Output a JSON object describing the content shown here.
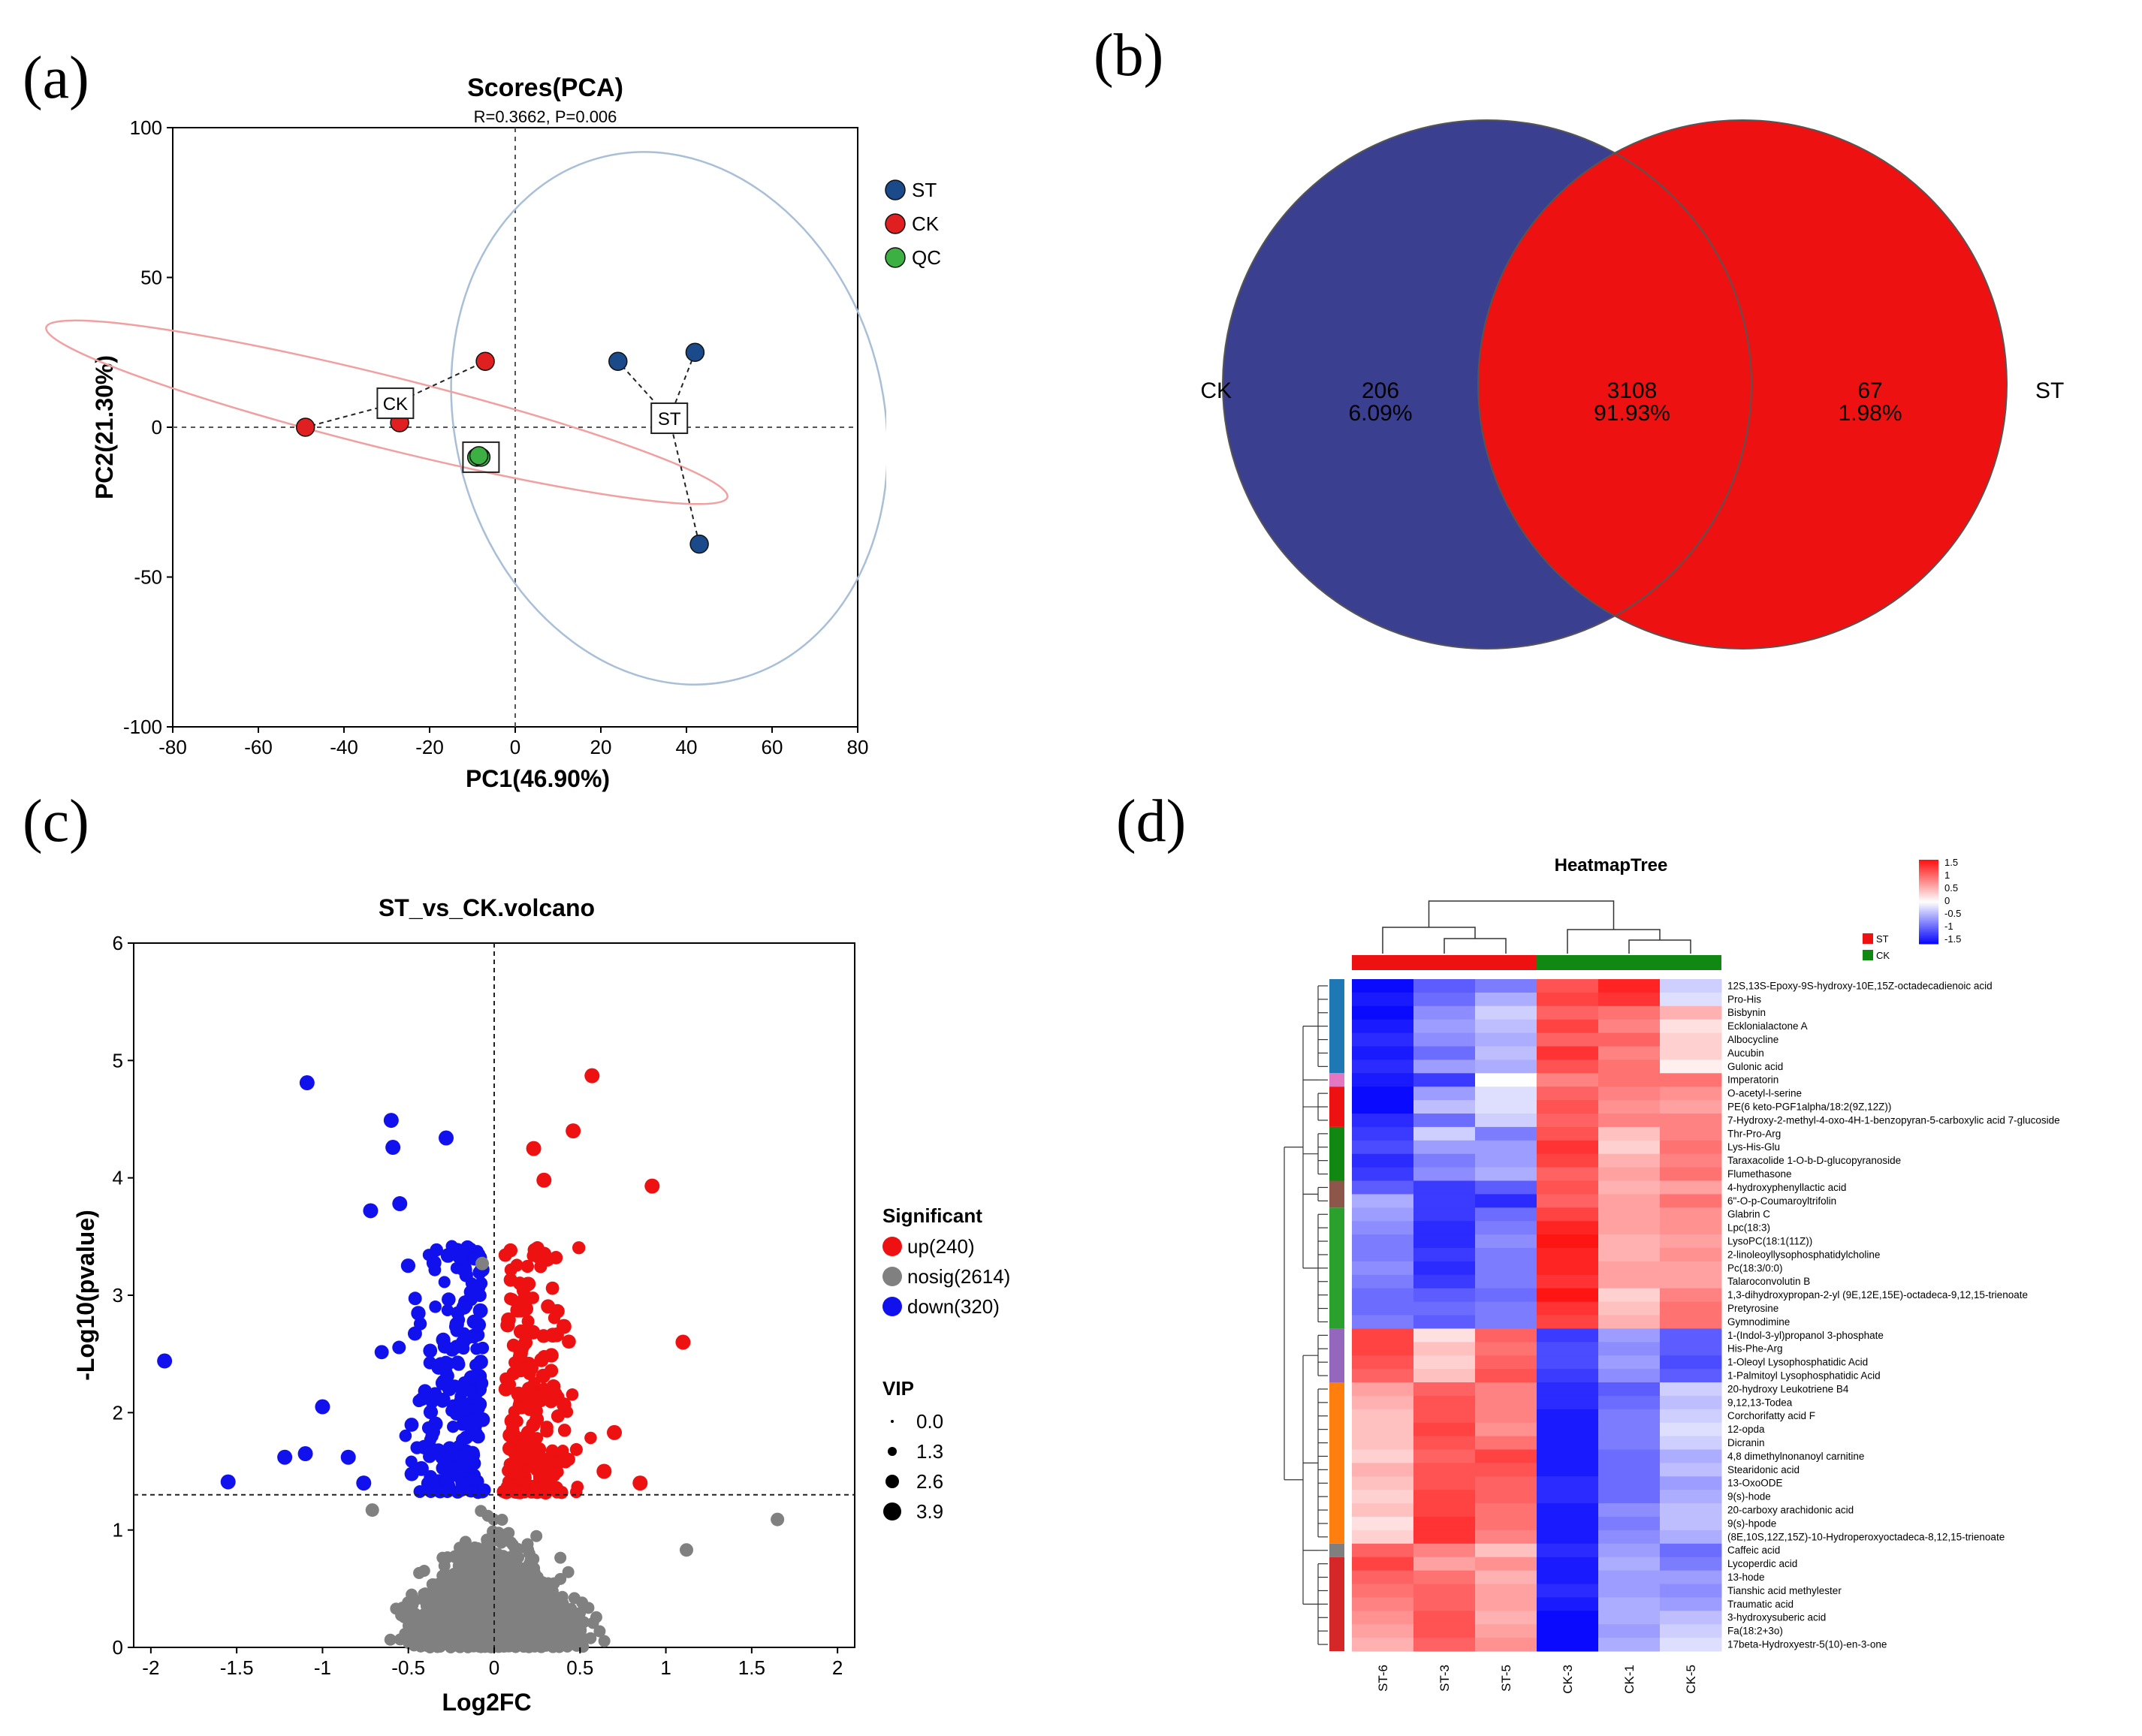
{
  "panel_labels": {
    "a": "(a)",
    "b": "(b)",
    "c": "(c)",
    "d": "(d)"
  },
  "colors": {
    "st": "#1a4a8a",
    "ck": "#e02020",
    "qc": "#3cb043",
    "venn_ck": "#3a3f8f",
    "venn_st": "#ee1111",
    "up": "#ee1111",
    "nosig": "#808080",
    "down": "#1111ee",
    "st_bar": "#ee1111",
    "ck_bar": "#118811"
  },
  "chart_data": [
    {
      "id": "pca",
      "type": "scatter",
      "title": "Scores(PCA)",
      "subtitle": "R=0.3662, P=0.006",
      "xlabel": "PC1(46.90%)",
      "ylabel": "PC2(21.30%)",
      "xlim": [
        -80,
        80
      ],
      "ylim": [
        -100,
        100
      ],
      "xticks": [
        -80,
        -60,
        -40,
        -20,
        0,
        20,
        40,
        60,
        80
      ],
      "yticks": [
        -100,
        -50,
        0,
        50,
        100
      ],
      "legend": [
        "ST",
        "CK",
        "QC"
      ],
      "series": [
        {
          "name": "ST",
          "points": [
            [
              24,
              22
            ],
            [
              42,
              25
            ],
            [
              43,
              -39
            ]
          ],
          "centroid": [
            36,
            3
          ],
          "label": "ST"
        },
        {
          "name": "CK",
          "points": [
            [
              -49,
              0
            ],
            [
              -27,
              1.5
            ],
            [
              -7,
              22
            ]
          ],
          "centroid": [
            -28,
            8
          ],
          "label": "CK"
        },
        {
          "name": "QC",
          "points": [
            [
              -9,
              -10
            ],
            [
              -8,
              -10
            ],
            [
              -8.5,
              -9.5
            ]
          ],
          "centroid": [
            -8,
            -10
          ],
          "label": ""
        }
      ],
      "ellipses": [
        {
          "name": "ST",
          "center": [
            36,
            3
          ],
          "rx": 50,
          "ry": 90,
          "angle": -15
        },
        {
          "name": "CK",
          "center": [
            -30,
            5
          ],
          "rx": 82,
          "ry": 12,
          "angle": 14
        }
      ]
    },
    {
      "id": "venn",
      "type": "venn",
      "sets": [
        {
          "name": "CK",
          "only": "206",
          "only_pct": "6.09%"
        },
        {
          "name": "ST",
          "only": "67",
          "only_pct": "1.98%"
        }
      ],
      "intersection": "3108",
      "intersection_pct": "91.93%"
    },
    {
      "id": "volcano",
      "type": "scatter",
      "title": "ST_vs_CK.volcano",
      "xlabel": "Log2FC",
      "ylabel": "-Log10(pvalue)",
      "xlim": [
        -2.1,
        2.1
      ],
      "ylim": [
        0,
        6
      ],
      "xticks": [
        -2,
        -1.5,
        -1,
        -0.5,
        0,
        0.5,
        1,
        1.5,
        2
      ],
      "yticks": [
        0,
        1,
        2,
        3,
        4,
        5,
        6
      ],
      "threshold_y": 1.3,
      "legend_title": "Significant",
      "legend": [
        "up(240)",
        "nosig(2614)",
        "down(320)"
      ],
      "vip_title": "VIP",
      "vip_values": [
        "0.0",
        "1.3",
        "2.6",
        "3.9"
      ],
      "highlight_points": {
        "up": [
          [
            0.57,
            4.87
          ],
          [
            0.46,
            4.4
          ],
          [
            0.23,
            4.25
          ],
          [
            0.29,
            3.98
          ],
          [
            0.92,
            3.93
          ],
          [
            1.1,
            2.6
          ],
          [
            0.7,
            1.83
          ],
          [
            0.85,
            1.4
          ],
          [
            0.64,
            1.5
          ]
        ],
        "down": [
          [
            -1.09,
            4.81
          ],
          [
            -0.6,
            4.49
          ],
          [
            -0.59,
            4.26
          ],
          [
            -0.28,
            4.34
          ],
          [
            -1.92,
            2.44
          ],
          [
            -1.55,
            1.41
          ],
          [
            -1.22,
            1.62
          ],
          [
            -1.1,
            1.65
          ],
          [
            -1.0,
            2.05
          ],
          [
            -0.85,
            1.62
          ],
          [
            -0.76,
            1.4
          ],
          [
            -0.72,
            3.72
          ],
          [
            -0.55,
            3.78
          ]
        ],
        "nosig": [
          [
            1.65,
            1.09
          ],
          [
            1.12,
            0.83
          ],
          [
            -0.71,
            1.17
          ],
          [
            -0.07,
            3.27
          ]
        ]
      }
    },
    {
      "id": "heatmap",
      "type": "heatmap",
      "title": "HeatmapTree",
      "columns": [
        "ST-6",
        "ST-3",
        "ST-5",
        "CK-3",
        "CK-1",
        "CK-5"
      ],
      "groups": [
        "ST",
        "CK"
      ],
      "colorbar_ticks": [
        "1.5",
        "1",
        "0.5",
        "0",
        "-0.5",
        "-1",
        "-1.5"
      ],
      "rows": [
        "12S,13S-Epoxy-9S-hydroxy-10E,15Z-octadecadienoic acid",
        "Pro-His",
        "Bisbynin",
        "Ecklonialactone A",
        "Albocycline",
        "Aucubin",
        "Gulonic acid",
        "Imperatorin",
        "O-acetyl-l-serine",
        "PE(6 keto-PGF1alpha/18:2(9Z,12Z))",
        "7-Hydroxy-2-methyl-4-oxo-4H-1-benzopyran-5-carboxylic acid 7-glucoside",
        "Thr-Pro-Arg",
        "Lys-His-Glu",
        "Taraxacolide 1-O-b-D-glucopyranoside",
        "Flumethasone",
        "4-hydroxyphenyllactic acid",
        "6\"-O-p-Coumaroyltrifolin",
        "Glabrin C",
        "Lpc(18:3)",
        "LysoPC(18:1(11Z))",
        "2-linoleoyllysophosphatidylcholine",
        "Pc(18:3/0:0)",
        "Talaroconvolutin B",
        "1,3-dihydroxypropan-2-yl (9E,12E,15E)-octadeca-9,12,15-trienoate",
        "Pretyrosine",
        "Gymnodimine",
        "1-(Indol-3-yl)propanol 3-phosphate",
        "His-Phe-Arg",
        "1-Oleoyl Lysophosphatidic Acid",
        "1-Palmitoyl Lysophosphatidic Acid",
        "20-hydroxy Leukotriene B4",
        "9,12,13-Todea",
        "Corchorifatty acid F",
        "12-opda",
        "Dicranin",
        "4,8 dimethylnonanoyl carnitine",
        "Stearidonic acid",
        "13-OxoODE",
        "9(s)-hode",
        "20-carboxy arachidonic acid",
        "9(s)-hpode",
        "(8E,10S,12Z,15Z)-10-Hydroperoxyoctadeca-8,12,15-trienoate",
        "Caffeic acid",
        "Lycoperdic acid",
        "13-hode",
        "Tianshic acid methylester",
        "Traumatic acid",
        "3-hydroxysuberic acid",
        "Fa(18:2+3o)",
        "17beta-Hydroxyestr-5(10)-en-3-one"
      ],
      "values": [
        [
          -1.5,
          -1.0,
          -0.8,
          1.1,
          1.4,
          -0.3
        ],
        [
          -1.4,
          -0.9,
          -0.5,
          1.2,
          1.3,
          -0.2
        ],
        [
          -1.5,
          -0.7,
          -0.3,
          1.0,
          0.9,
          0.5
        ],
        [
          -1.4,
          -0.6,
          -0.4,
          1.2,
          0.8,
          0.2
        ],
        [
          -1.3,
          -0.7,
          -0.5,
          1.0,
          1.0,
          0.3
        ],
        [
          -1.4,
          -0.9,
          -0.4,
          1.3,
          0.8,
          0.3
        ],
        [
          -1.3,
          -0.6,
          -0.5,
          1.1,
          0.9,
          0.1
        ],
        [
          -1.4,
          -1.2,
          0.0,
          0.8,
          0.9,
          0.9
        ],
        [
          -1.5,
          -0.6,
          -0.2,
          1.0,
          0.8,
          0.7
        ],
        [
          -1.6,
          -0.4,
          -0.2,
          1.1,
          0.7,
          0.6
        ],
        [
          -1.3,
          -0.9,
          -0.3,
          1.0,
          0.8,
          0.8
        ],
        [
          -1.2,
          -0.3,
          -0.8,
          1.1,
          0.4,
          0.8
        ],
        [
          -1.1,
          -0.6,
          -0.6,
          1.3,
          0.3,
          0.9
        ],
        [
          -1.3,
          -0.8,
          -0.6,
          1.2,
          0.5,
          0.8
        ],
        [
          -1.2,
          -0.7,
          -0.5,
          1.0,
          0.6,
          0.9
        ],
        [
          -1.0,
          -1.2,
          -1.0,
          1.1,
          0.5,
          0.6
        ],
        [
          -0.5,
          -1.2,
          -1.3,
          1.0,
          0.6,
          0.9
        ],
        [
          -0.6,
          -1.2,
          -0.9,
          1.2,
          0.6,
          0.7
        ],
        [
          -0.7,
          -1.3,
          -0.8,
          1.4,
          0.6,
          0.7
        ],
        [
          -0.8,
          -1.3,
          -0.7,
          1.5,
          0.5,
          0.6
        ],
        [
          -0.8,
          -1.2,
          -0.8,
          1.4,
          0.5,
          0.7
        ],
        [
          -0.7,
          -1.3,
          -0.8,
          1.4,
          0.6,
          0.6
        ],
        [
          -0.8,
          -1.2,
          -0.8,
          1.3,
          0.6,
          0.6
        ],
        [
          -0.9,
          -1.0,
          -0.9,
          1.5,
          0.3,
          0.8
        ],
        [
          -0.9,
          -0.9,
          -0.8,
          1.3,
          0.4,
          0.9
        ],
        [
          -0.8,
          -1.0,
          -0.8,
          1.2,
          0.5,
          0.9
        ],
        [
          1.2,
          0.2,
          1.0,
          -1.2,
          -0.6,
          -1.0
        ],
        [
          1.2,
          0.4,
          0.9,
          -1.1,
          -0.7,
          -1.0
        ],
        [
          1.1,
          0.3,
          1.0,
          -1.1,
          -0.6,
          -1.1
        ],
        [
          1.0,
          0.4,
          1.1,
          -1.2,
          -0.7,
          -1.0
        ],
        [
          0.6,
          1.0,
          0.8,
          -1.3,
          -1.0,
          -0.3
        ],
        [
          0.5,
          1.1,
          0.8,
          -1.3,
          -0.9,
          -0.4
        ],
        [
          0.4,
          1.1,
          0.8,
          -1.4,
          -0.8,
          -0.3
        ],
        [
          0.4,
          1.2,
          0.7,
          -1.4,
          -0.8,
          -0.2
        ],
        [
          0.4,
          1.1,
          0.9,
          -1.4,
          -0.8,
          -0.3
        ],
        [
          0.3,
          1.0,
          1.2,
          -1.4,
          -0.9,
          -0.5
        ],
        [
          0.5,
          1.1,
          1.1,
          -1.4,
          -0.9,
          -0.4
        ],
        [
          0.4,
          1.1,
          1.0,
          -1.3,
          -0.9,
          -0.6
        ],
        [
          0.3,
          1.2,
          1.0,
          -1.3,
          -0.9,
          -0.5
        ],
        [
          0.4,
          1.2,
          0.9,
          -1.4,
          -0.7,
          -0.4
        ],
        [
          0.2,
          1.3,
          0.9,
          -1.4,
          -0.8,
          -0.4
        ],
        [
          0.3,
          1.3,
          0.8,
          -1.4,
          -0.7,
          -0.5
        ],
        [
          1.0,
          0.8,
          0.4,
          -1.3,
          -0.6,
          -0.9
        ],
        [
          1.2,
          0.6,
          0.7,
          -1.4,
          -0.5,
          -0.8
        ],
        [
          1.0,
          0.9,
          0.5,
          -1.4,
          -0.6,
          -0.6
        ],
        [
          0.9,
          1.0,
          0.6,
          -1.3,
          -0.6,
          -0.7
        ],
        [
          0.8,
          1.0,
          0.6,
          -1.4,
          -0.5,
          -0.6
        ],
        [
          0.7,
          1.1,
          0.5,
          -1.5,
          -0.5,
          -0.4
        ],
        [
          0.6,
          1.1,
          0.6,
          -1.5,
          -0.6,
          -0.3
        ],
        [
          0.5,
          1.0,
          0.7,
          -1.6,
          -0.5,
          -0.2
        ]
      ],
      "row_clusters": [
        {
          "start": 0,
          "end": 6,
          "color": "#1f77b4"
        },
        {
          "start": 7,
          "end": 7,
          "color": "#e377c2"
        },
        {
          "start": 8,
          "end": 10,
          "color": "#ee1111"
        },
        {
          "start": 11,
          "end": 14,
          "color": "#118811"
        },
        {
          "start": 15,
          "end": 16,
          "color": "#8c564b"
        },
        {
          "start": 17,
          "end": 25,
          "color": "#2ca02c"
        },
        {
          "start": 26,
          "end": 29,
          "color": "#9467bd"
        },
        {
          "start": 30,
          "end": 41,
          "color": "#ff7f0e"
        },
        {
          "start": 42,
          "end": 42,
          "color": "#7f7f7f"
        },
        {
          "start": 43,
          "end": 49,
          "color": "#d62728"
        }
      ]
    }
  ]
}
